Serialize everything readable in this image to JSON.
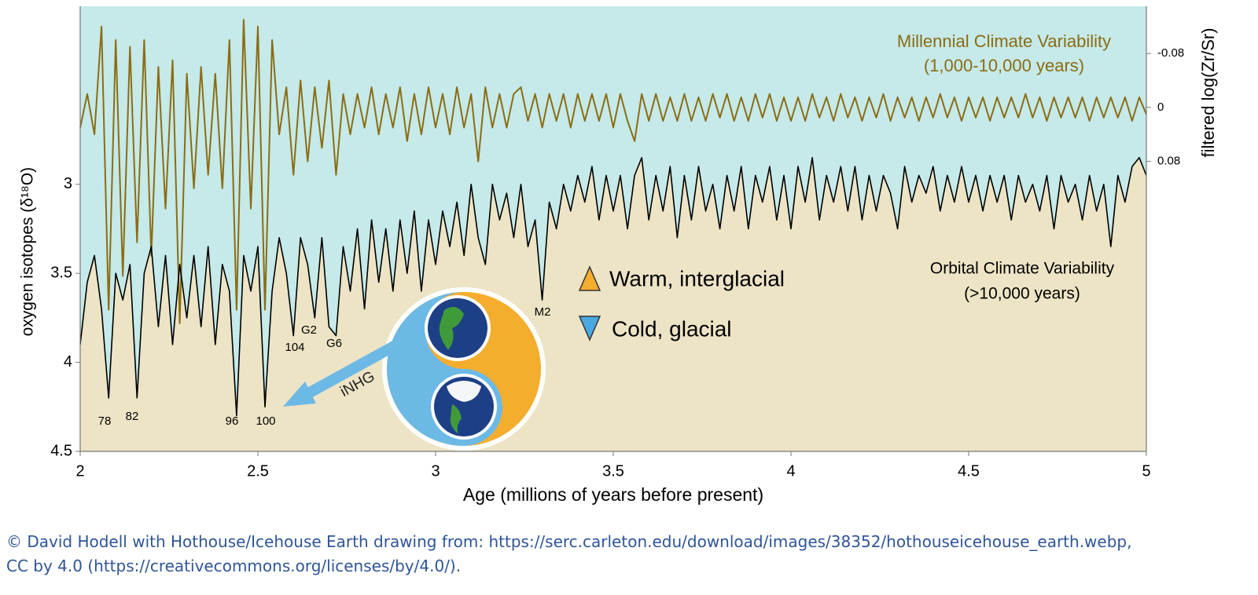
{
  "chart_data": {
    "type": "line",
    "xlabel": "Age (millions of years before present)",
    "ylabel": "oxygen isotopes (δ¹⁸O)",
    "y2label": "filtered log(Zr/Sr)",
    "xlim": [
      2,
      5
    ],
    "xticks": [
      2,
      2.5,
      3,
      3.5,
      4,
      4.5,
      5
    ],
    "ylim": [
      4.5,
      2.0
    ],
    "yticks": [
      3,
      3.5,
      4,
      4.5
    ],
    "y2lim": [
      0.51,
      -0.15
    ],
    "y2ticks": [
      -0.08,
      0,
      0.08
    ],
    "x": [
      2,
      2.02,
      2.04,
      2.06,
      2.08,
      2.1,
      2.12,
      2.14,
      2.16,
      2.18,
      2.2,
      2.22,
      2.24,
      2.26,
      2.28,
      2.3,
      2.32,
      2.34,
      2.36,
      2.38,
      2.4,
      2.42,
      2.44,
      2.46,
      2.48,
      2.5,
      2.52,
      2.54,
      2.56,
      2.58,
      2.6,
      2.62,
      2.64,
      2.66,
      2.68,
      2.7,
      2.72,
      2.74,
      2.76,
      2.78,
      2.8,
      2.82,
      2.84,
      2.86,
      2.88,
      2.9,
      2.92,
      2.94,
      2.96,
      2.98,
      3,
      3.02,
      3.04,
      3.06,
      3.08,
      3.1,
      3.12,
      3.14,
      3.16,
      3.18,
      3.2,
      3.22,
      3.24,
      3.26,
      3.28,
      3.3,
      3.32,
      3.34,
      3.36,
      3.38,
      3.4,
      3.42,
      3.44,
      3.46,
      3.48,
      3.5,
      3.52,
      3.54,
      3.56,
      3.58,
      3.6,
      3.62,
      3.64,
      3.66,
      3.68,
      3.7,
      3.72,
      3.74,
      3.76,
      3.78,
      3.8,
      3.82,
      3.84,
      3.86,
      3.88,
      3.9,
      3.92,
      3.94,
      3.96,
      3.98,
      4,
      4.02,
      4.04,
      4.06,
      4.08,
      4.1,
      4.12,
      4.14,
      4.16,
      4.18,
      4.2,
      4.22,
      4.24,
      4.26,
      4.28,
      4.3,
      4.32,
      4.34,
      4.36,
      4.38,
      4.4,
      4.42,
      4.44,
      4.46,
      4.48,
      4.5,
      4.52,
      4.54,
      4.56,
      4.58,
      4.6,
      4.62,
      4.64,
      4.66,
      4.68,
      4.7,
      4.72,
      4.74,
      4.76,
      4.78,
      4.8,
      4.82,
      4.84,
      4.86,
      4.88,
      4.9,
      4.92,
      4.94,
      4.96,
      4.98,
      5
    ],
    "series": [
      {
        "color": "#8a6d14",
        "axis": "y2",
        "values": [
          0.03,
          -0.02,
          0.04,
          -0.12,
          0.3,
          -0.1,
          0.25,
          -0.09,
          0.2,
          -0.1,
          0.22,
          -0.06,
          0.15,
          -0.07,
          0.32,
          -0.05,
          0.12,
          -0.06,
          0.1,
          -0.05,
          0.12,
          -0.1,
          0.3,
          -0.13,
          0.15,
          -0.12,
          0.3,
          -0.1,
          0.04,
          -0.03,
          0.1,
          -0.04,
          0.08,
          -0.03,
          0.06,
          -0.04,
          0.1,
          -0.02,
          0.04,
          -0.02,
          0.03,
          -0.03,
          0.04,
          -0.02,
          0.03,
          -0.03,
          0.05,
          -0.02,
          0.04,
          -0.03,
          0.03,
          -0.02,
          0.04,
          -0.03,
          0.03,
          -0.02,
          0.08,
          -0.03,
          0.03,
          -0.02,
          0.03,
          -0.02,
          -0.03,
          0.02,
          -0.02,
          0.03,
          -0.02,
          0.02,
          -0.02,
          0.03,
          -0.02,
          0.02,
          -0.02,
          0.02,
          -0.02,
          0.03,
          -0.02,
          0.02,
          0.05,
          -0.02,
          0.02,
          -0.02,
          0.02,
          -0.015,
          0.02,
          -0.02,
          0.02,
          -0.015,
          0.02,
          -0.02,
          0.015,
          -0.02,
          0.02,
          -0.015,
          0.02,
          -0.02,
          0.015,
          -0.02,
          0.02,
          -0.015,
          0.02,
          -0.015,
          0.02,
          -0.02,
          0.015,
          -0.015,
          0.02,
          -0.02,
          0.015,
          -0.015,
          0.02,
          -0.015,
          0.015,
          -0.02,
          0.02,
          -0.015,
          0.015,
          -0.015,
          0.02,
          -0.015,
          0.015,
          -0.02,
          0.015,
          -0.015,
          0.02,
          -0.015,
          0.015,
          -0.015,
          0.02,
          -0.015,
          0.015,
          -0.015,
          0.015,
          -0.02,
          0.015,
          -0.015,
          0.02,
          -0.015,
          0.015,
          -0.015,
          0.015,
          -0.015,
          0.02,
          -0.015,
          0.015,
          -0.015,
          0.015,
          -0.015,
          0.02,
          -0.015,
          0.01
        ]
      },
      {
        "color": "#000000",
        "fill": "#ede4c6",
        "values": [
          3.9,
          3.55,
          3.4,
          3.7,
          4.2,
          3.5,
          3.65,
          3.45,
          4.2,
          3.5,
          3.35,
          3.8,
          3.4,
          3.9,
          3.45,
          3.75,
          3.4,
          3.8,
          3.35,
          3.9,
          3.45,
          3.6,
          4.3,
          3.4,
          3.6,
          3.35,
          4.25,
          3.6,
          3.3,
          3.5,
          3.85,
          3.3,
          3.45,
          3.75,
          3.3,
          3.8,
          3.85,
          3.35,
          3.6,
          3.25,
          3.7,
          3.2,
          3.55,
          3.25,
          3.6,
          3.2,
          3.5,
          3.15,
          3.6,
          3.2,
          3.45,
          3.15,
          3.35,
          3.1,
          3.4,
          3.0,
          3.3,
          3.45,
          3.0,
          3.2,
          3.05,
          3.3,
          3.0,
          3.35,
          3.2,
          3.65,
          3.1,
          3.25,
          3.0,
          3.15,
          2.95,
          3.1,
          2.9,
          3.2,
          2.95,
          3.15,
          2.95,
          3.25,
          2.95,
          2.85,
          3.2,
          2.95,
          3.15,
          2.9,
          3.3,
          2.95,
          3.2,
          2.9,
          3.15,
          3.0,
          3.25,
          2.95,
          3.15,
          2.9,
          3.25,
          2.95,
          3.1,
          2.9,
          3.2,
          2.95,
          3.25,
          2.9,
          3.1,
          2.85,
          3.2,
          2.95,
          3.1,
          2.9,
          3.15,
          2.9,
          3.2,
          2.95,
          3.15,
          2.95,
          3.05,
          3.25,
          2.9,
          3.1,
          2.95,
          3.05,
          2.9,
          3.15,
          2.95,
          3.1,
          2.9,
          3.1,
          2.95,
          3.15,
          2.95,
          3.1,
          2.95,
          3.2,
          2.95,
          3.1,
          3.0,
          3.15,
          2.95,
          3.25,
          2.95,
          3.1,
          3.0,
          3.2,
          2.95,
          3.15,
          3.0,
          3.35,
          2.95,
          3.1,
          2.9,
          2.85,
          2.95
        ]
      }
    ],
    "background": "#c6e9e9",
    "annotations": [
      "78",
      "82",
      "96",
      "100",
      "104",
      "G2",
      "G6",
      "M2",
      "Millennial Climate Variability",
      "(1,000-10,000 years)",
      "Orbital Climate Variability",
      "(>10,000 years)",
      "iNHG"
    ],
    "legend": [
      "Warm, interglacial",
      "Cold, glacial"
    ]
  },
  "caption": [
    "© David Hodell with Hothouse/Icehouse Earth drawing from: https://serc.carleton.edu/download/images/38352/hothouseicehouse_earth.webp,",
    "CC by 4.0 (https://creativecommons.org/licenses/by/4.0/)."
  ]
}
